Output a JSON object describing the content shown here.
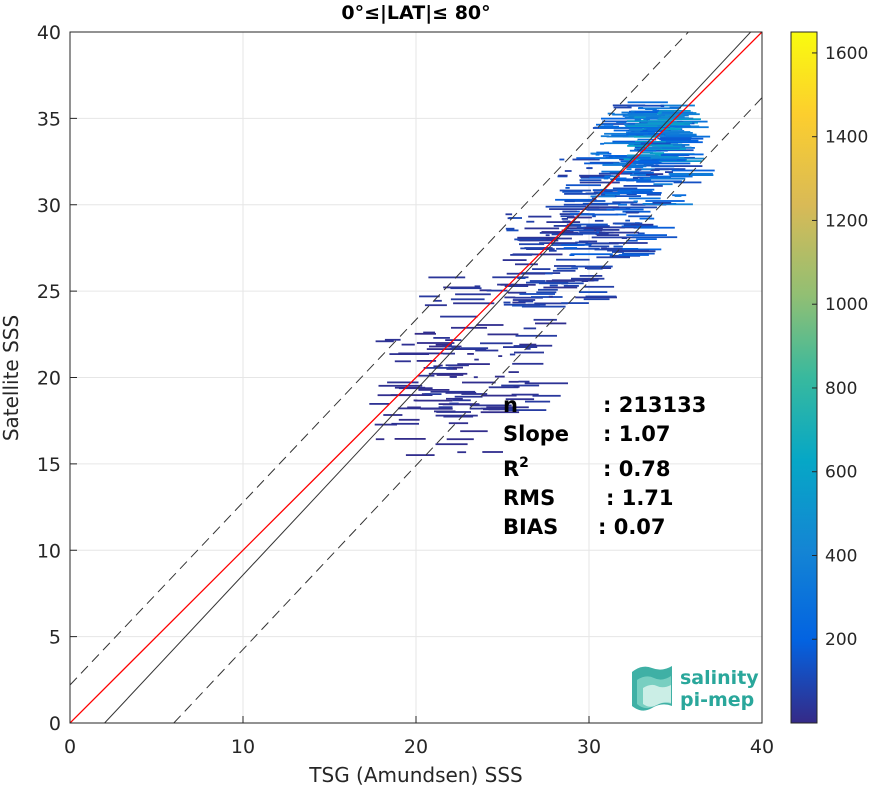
{
  "chart_data": {
    "type": "heatmap",
    "title": "0°≤|LAT|≤ 80°",
    "xlabel": "TSG (Amundsen) SSS",
    "ylabel": "Satellite SSS",
    "xlim": [
      0,
      40
    ],
    "ylim": [
      0,
      40
    ],
    "x_ticks": [
      "0",
      "10",
      "20",
      "30",
      "40"
    ],
    "y_ticks": [
      "0",
      "5",
      "10",
      "15",
      "20",
      "25",
      "30",
      "35",
      "40"
    ],
    "grid": true,
    "reference_lines": [
      {
        "kind": "one-to-one",
        "color": "#000000",
        "style": "solid"
      },
      {
        "kind": "linear-fit",
        "color": "#ff0000",
        "style": "solid"
      },
      {
        "kind": "lower-bound",
        "color": "#000000",
        "style": "dashed"
      },
      {
        "kind": "upper-bound",
        "color": "#000000",
        "style": "dashed"
      }
    ],
    "fit_line": {
      "slope": 1.07,
      "intercept": -2.2
    },
    "bound_offset": 4,
    "colorbar": {
      "range": [
        0,
        1650
      ],
      "ticks": [
        "200",
        "400",
        "600",
        "800",
        "1000",
        "1200",
        "1400",
        "1600"
      ],
      "colormap": "parula"
    },
    "density_clusters": [
      {
        "x_range": [
          17,
          24
        ],
        "y_range": [
          15.5,
          23
        ],
        "level": 20
      },
      {
        "x_range": [
          20,
          27
        ],
        "y_range": [
          18,
          26
        ],
        "level": 40
      },
      {
        "x_range": [
          25,
          30
        ],
        "y_range": [
          24,
          30
        ],
        "level": 80
      },
      {
        "x_range": [
          28,
          33
        ],
        "y_range": [
          27,
          33
        ],
        "level": 140
      },
      {
        "x_range": [
          30,
          35
        ],
        "y_range": [
          30,
          36
        ],
        "level": 260
      },
      {
        "x_range": [
          32,
          34.5
        ],
        "y_range": [
          32.5,
          35.5
        ],
        "level": 420
      }
    ],
    "stats": [
      {
        "label": "n",
        "value": ": 213133"
      },
      {
        "label": "Slope",
        "value": ": 1.07"
      },
      {
        "label": "R",
        "sup": "2",
        "value": ": 0.78"
      },
      {
        "label": "RMS",
        "value": ": 1.71"
      },
      {
        "label": "BIAS",
        "value": ": 0.07"
      }
    ]
  },
  "logo": {
    "line1": "salinity",
    "line2": "pi-mep",
    "color": "#2aa79b"
  }
}
